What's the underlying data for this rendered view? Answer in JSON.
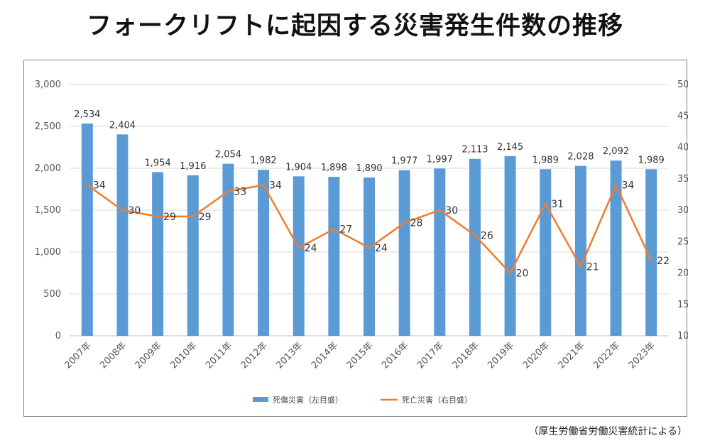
{
  "title": "フォークリフトに起因する災害発生件数の推移",
  "source": "（厚生労働省労働災害統計による）",
  "colors": {
    "bar": "#5b9bd5",
    "line": "#ed7d31",
    "grid": "#d9d9d9",
    "axis": "#bfbfbf"
  },
  "chart_data": {
    "type": "bar+line",
    "categories": [
      "2007年",
      "2008年",
      "2009年",
      "2010年",
      "2011年",
      "2012年",
      "2013年",
      "2014年",
      "2015年",
      "2016年",
      "2017年",
      "2018年",
      "2019年",
      "2020年",
      "2021年",
      "2022年",
      "2023年"
    ],
    "series": [
      {
        "name": "死傷災害（左目盛）",
        "type": "bar",
        "axis": "left",
        "values": [
          2534,
          2404,
          1954,
          1916,
          2054,
          1982,
          1904,
          1898,
          1890,
          1977,
          1997,
          2113,
          2145,
          1989,
          2028,
          2092,
          1989
        ]
      },
      {
        "name": "死亡災害（右目盛）",
        "type": "line",
        "axis": "right",
        "values": [
          34,
          30,
          29,
          29,
          33,
          34,
          24,
          27,
          24,
          28,
          30,
          26,
          20,
          31,
          21,
          34,
          22
        ]
      }
    ],
    "y_left": {
      "min": 0,
      "max": 3000,
      "step": 500
    },
    "y_right": {
      "min": 10,
      "max": 50,
      "step": 5
    },
    "grid": true,
    "legend_position": "bottom"
  }
}
